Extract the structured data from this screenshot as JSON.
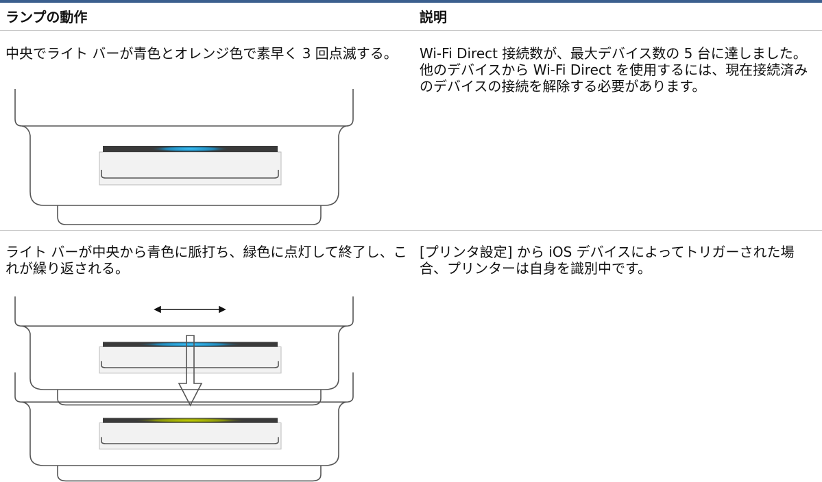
{
  "table": {
    "columns": [
      "ランプの動作",
      "説明"
    ],
    "rows": [
      [
        "中央でライト バーが青色とオレンジ色で素早く 3 回点滅する。",
        "Wi-Fi Direct 接続数が、最大デバイス数の 5 台に達しました。他のデバイスから Wi-Fi Direct を使用するには、現在接続済みのデバイスの接続を解除する必要があります。"
      ],
      [
        "ライト バーが中央から青色に脈打ち、緑色に点灯して終了し、これが繰り返される。",
        "[プリンタ設定] から iOS デバイスによってトリガーされた場合、プリンターは自身を識別中です。"
      ]
    ]
  }
}
